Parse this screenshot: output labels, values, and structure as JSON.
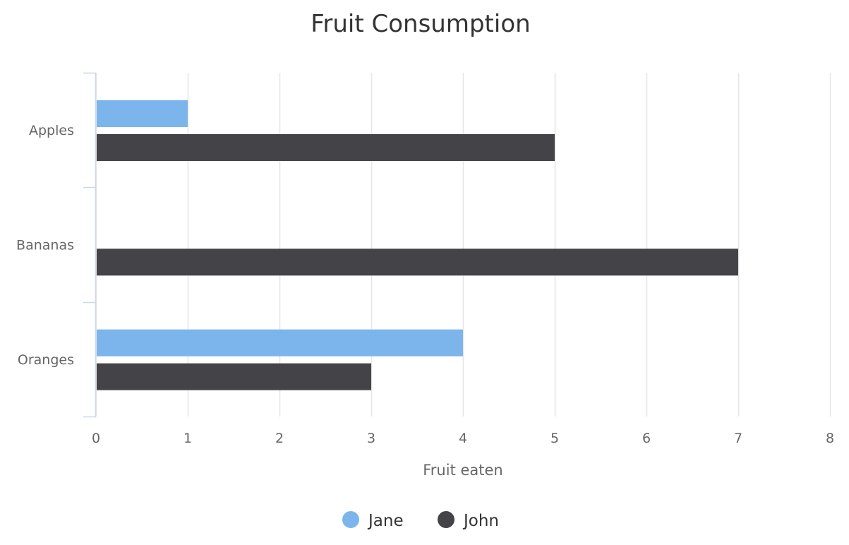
{
  "chart_data": {
    "type": "bar",
    "orientation": "horizontal",
    "title": "Fruit Consumption",
    "xlabel": "Fruit eaten",
    "ylabel": "",
    "categories": [
      "Apples",
      "Bananas",
      "Oranges"
    ],
    "series": [
      {
        "name": "Jane",
        "values": [
          1,
          0,
          4
        ],
        "color": "#7cb5ec"
      },
      {
        "name": "John",
        "values": [
          5,
          7,
          3
        ],
        "color": "#434348"
      }
    ],
    "xlim": [
      0,
      8
    ],
    "ticks": [
      "0",
      "1",
      "2",
      "3",
      "4",
      "5",
      "6",
      "7",
      "8"
    ],
    "grid": true,
    "legend_position": "bottom-center",
    "colors": {
      "grid": "#e6e6e6",
      "axis": "#ccd6eb",
      "title": "#333333",
      "label": "#666666"
    }
  }
}
